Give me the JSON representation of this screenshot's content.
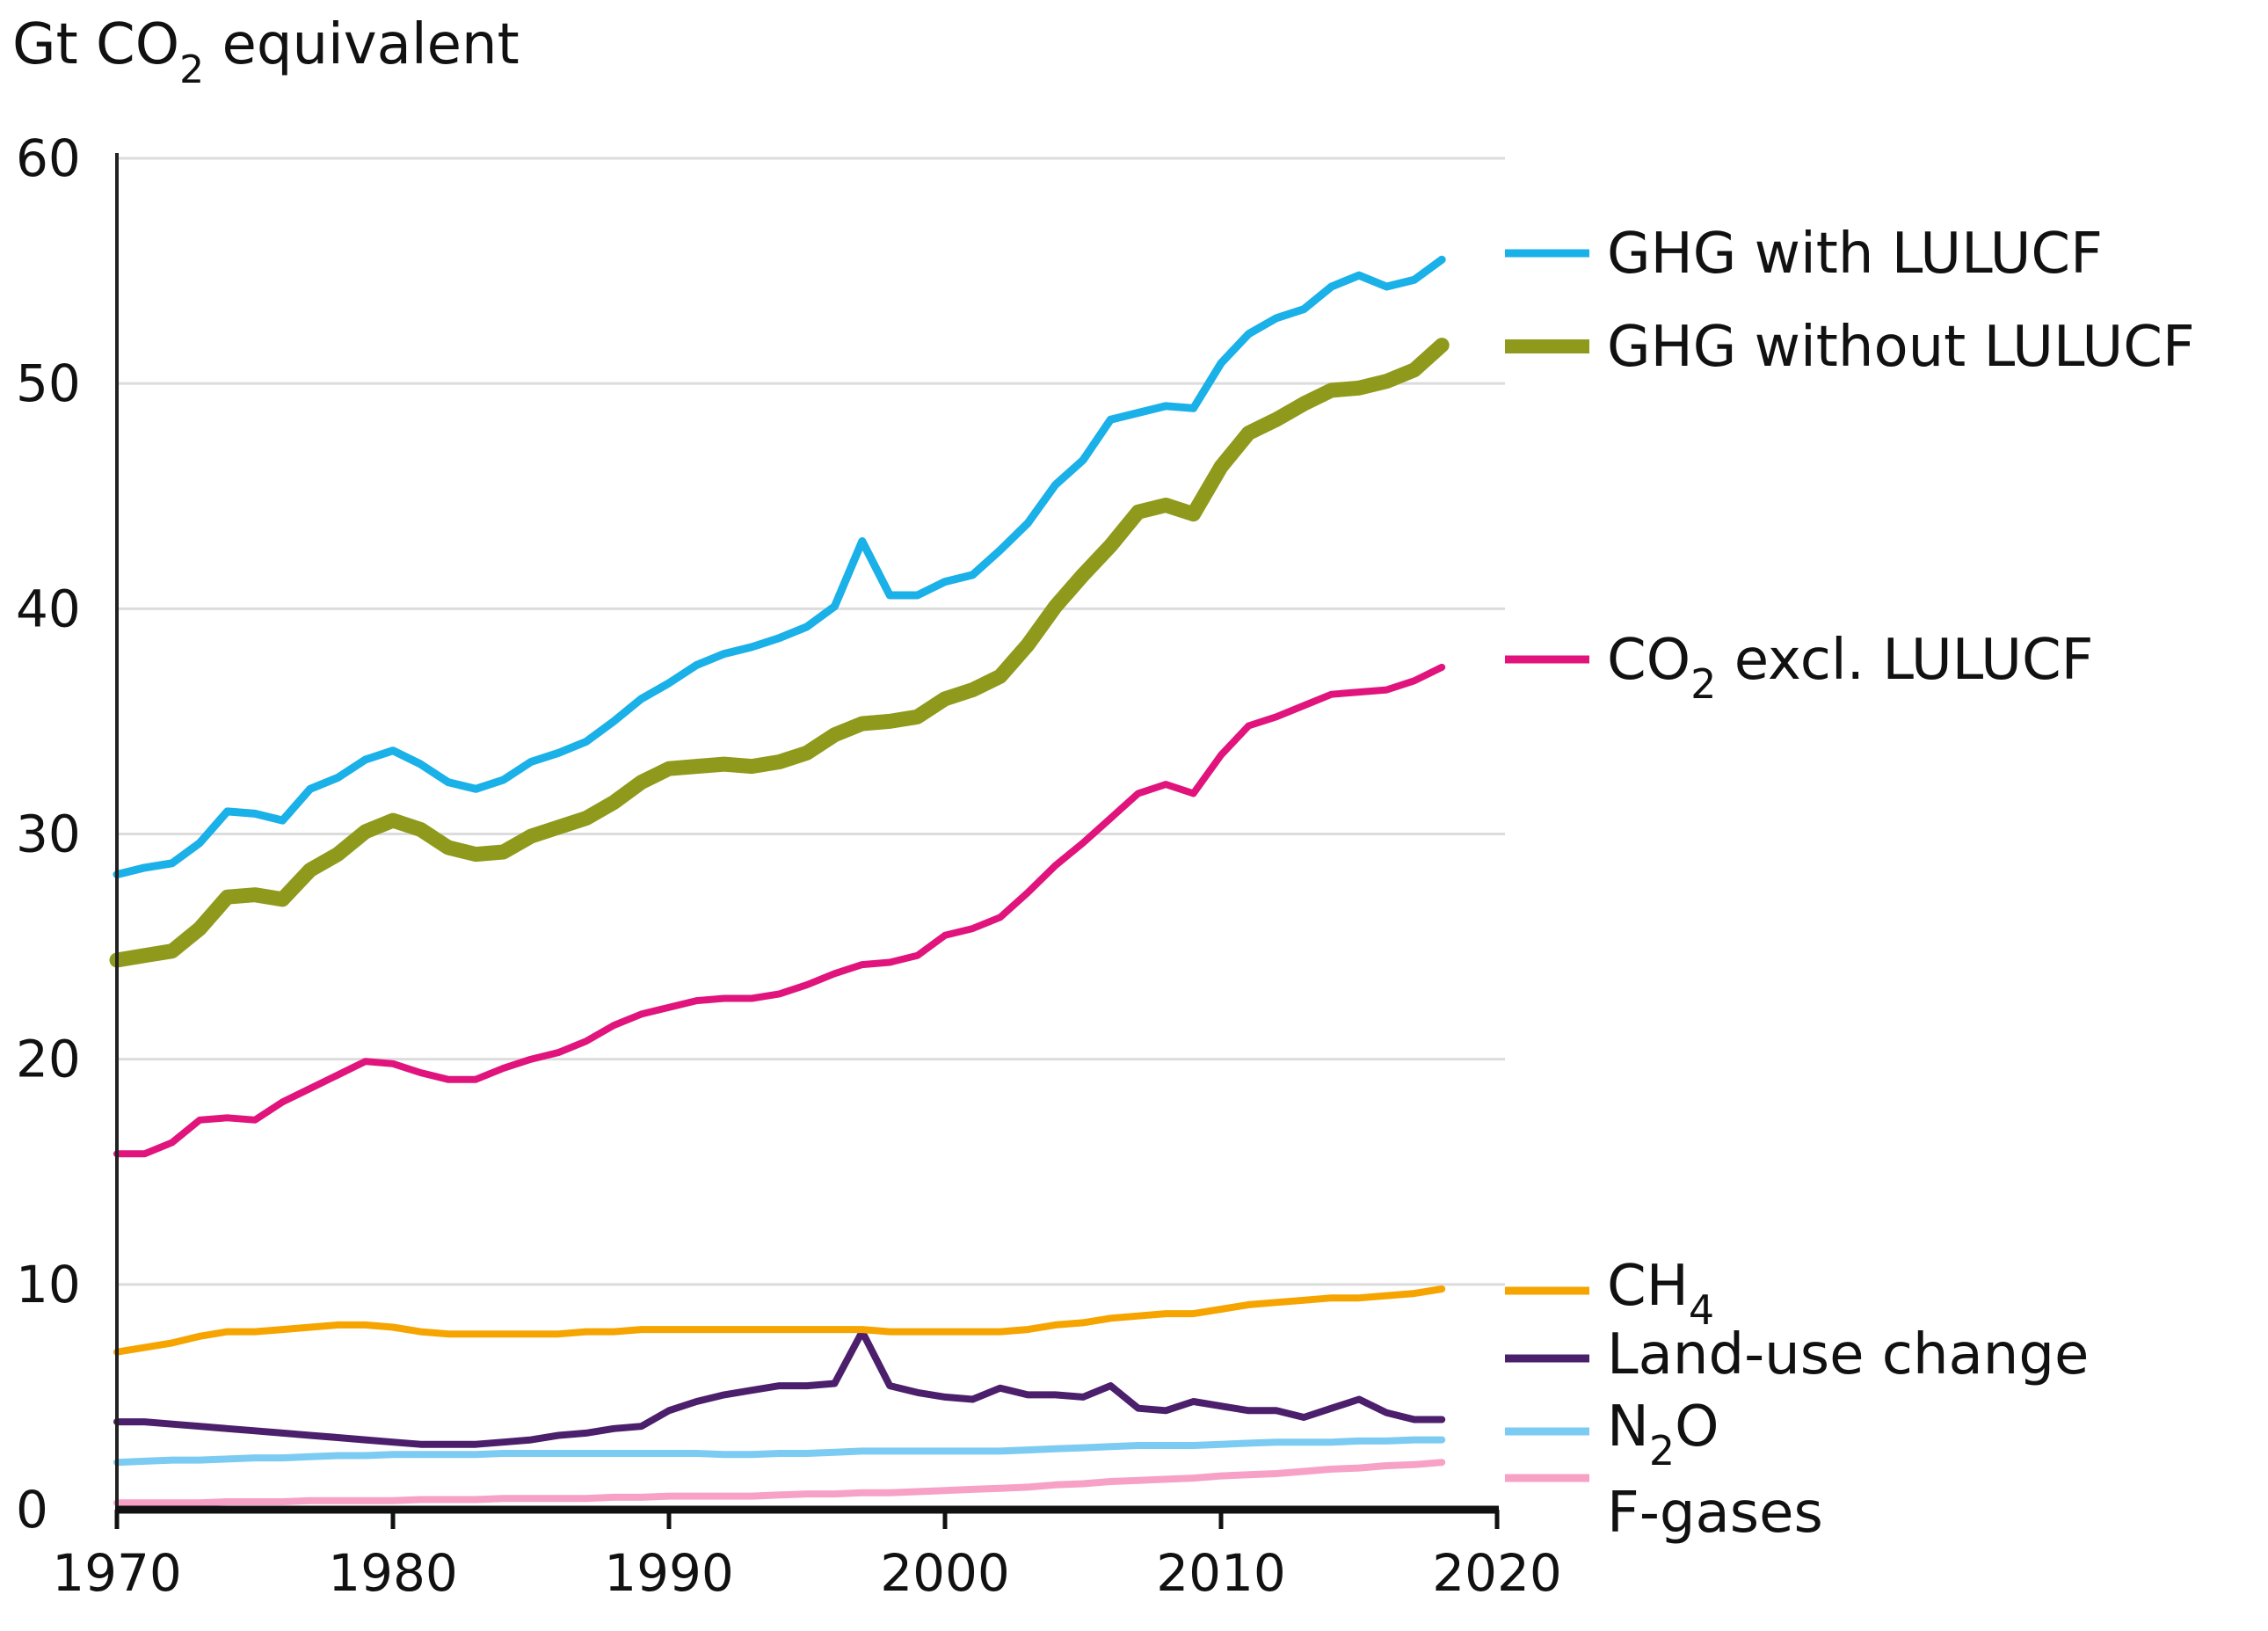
{
  "chart_data": {
    "type": "line",
    "ylabel": {
      "prefix": "Gt CO",
      "sub": "2",
      "suffix": " equivalent"
    },
    "xlim": [
      1970,
      2020
    ],
    "ylim": [
      0,
      60
    ],
    "xticks": [
      1970,
      1980,
      1990,
      2000,
      2010,
      2020
    ],
    "yticks": [
      0,
      10,
      20,
      30,
      40,
      50,
      60
    ],
    "grid": true,
    "legend_position": "right, at series ends",
    "x": [
      1970,
      1971,
      1972,
      1973,
      1974,
      1975,
      1976,
      1977,
      1978,
      1979,
      1980,
      1981,
      1982,
      1983,
      1984,
      1985,
      1986,
      1987,
      1988,
      1989,
      1990,
      1991,
      1992,
      1993,
      1994,
      1995,
      1996,
      1997,
      1998,
      1999,
      2000,
      2001,
      2002,
      2003,
      2004,
      2005,
      2006,
      2007,
      2008,
      2009,
      2010,
      2011,
      2012,
      2013,
      2014,
      2015,
      2016,
      2017,
      2018
    ],
    "series": [
      {
        "key": "ghg_with",
        "name": "GHG with LULUCF",
        "label": {
          "pre": "GHG with LULUCF",
          "sub": "",
          "post": ""
        },
        "color": "#1ab0e8",
        "width": 9,
        "values": [
          28.2,
          28.5,
          28.7,
          29.6,
          31.0,
          30.9,
          30.6,
          32.0,
          32.5,
          33.3,
          33.7,
          33.1,
          32.3,
          32.0,
          32.4,
          33.2,
          33.6,
          34.1,
          35.0,
          36.0,
          36.7,
          37.5,
          38.0,
          38.3,
          38.7,
          39.2,
          40.1,
          43.0,
          40.6,
          40.6,
          41.2,
          41.5,
          42.6,
          43.8,
          45.5,
          46.6,
          48.4,
          48.7,
          49.0,
          48.9,
          50.9,
          52.2,
          52.9,
          53.3,
          54.3,
          54.8,
          54.3,
          54.6,
          55.5
        ]
      },
      {
        "key": "ghg_without",
        "name": "GHG without LULUCF",
        "label": {
          "pre": "GHG without LULUCF",
          "sub": "",
          "post": ""
        },
        "color": "#8f9a1c",
        "width": 17,
        "values": [
          24.4,
          24.6,
          24.8,
          25.8,
          27.2,
          27.3,
          27.1,
          28.4,
          29.1,
          30.1,
          30.6,
          30.2,
          29.4,
          29.1,
          29.2,
          29.9,
          30.3,
          30.7,
          31.4,
          32.3,
          32.9,
          33.0,
          33.1,
          33.0,
          33.2,
          33.6,
          34.4,
          34.9,
          35.0,
          35.2,
          36.0,
          36.4,
          37.0,
          38.4,
          40.1,
          41.5,
          42.8,
          44.3,
          44.6,
          44.2,
          46.3,
          47.8,
          48.4,
          49.1,
          49.7,
          49.8,
          50.1,
          50.6,
          51.7
        ]
      },
      {
        "key": "co2",
        "name": "CO2 excl. LULUCF",
        "label": {
          "pre": "CO",
          "sub": "2",
          "post": " excl. LULUCF"
        },
        "color": "#e0147c",
        "width": 8,
        "values": [
          15.8,
          15.8,
          16.3,
          17.3,
          17.4,
          17.3,
          18.1,
          18.7,
          19.3,
          19.9,
          19.8,
          19.4,
          19.1,
          19.1,
          19.6,
          20.0,
          20.3,
          20.8,
          21.5,
          22.0,
          22.3,
          22.6,
          22.7,
          22.7,
          22.9,
          23.3,
          23.8,
          24.2,
          24.3,
          24.6,
          25.5,
          25.8,
          26.3,
          27.4,
          28.6,
          29.6,
          30.7,
          31.8,
          32.2,
          31.8,
          33.5,
          34.8,
          35.2,
          35.7,
          36.2,
          36.3,
          36.4,
          36.8,
          37.4
        ]
      },
      {
        "key": "ch4",
        "name": "CH4",
        "label": {
          "pre": "CH",
          "sub": "4",
          "post": ""
        },
        "color": "#f5a400",
        "width": 8,
        "values": [
          7.0,
          7.2,
          7.4,
          7.7,
          7.9,
          7.9,
          8.0,
          8.1,
          8.2,
          8.2,
          8.1,
          7.9,
          7.8,
          7.8,
          7.8,
          7.8,
          7.8,
          7.9,
          7.9,
          8.0,
          8.0,
          8.0,
          8.0,
          8.0,
          8.0,
          8.0,
          8.0,
          8.0,
          7.9,
          7.9,
          7.9,
          7.9,
          7.9,
          8.0,
          8.2,
          8.3,
          8.5,
          8.6,
          8.7,
          8.7,
          8.9,
          9.1,
          9.2,
          9.3,
          9.4,
          9.4,
          9.5,
          9.6,
          9.8
        ]
      },
      {
        "key": "luc",
        "name": "Land-use change",
        "label": {
          "pre": "Land-use change",
          "sub": "",
          "post": ""
        },
        "color": "#4b1f6b",
        "width": 8,
        "values": [
          3.9,
          3.9,
          3.8,
          3.7,
          3.6,
          3.5,
          3.4,
          3.3,
          3.2,
          3.1,
          3.0,
          2.9,
          2.9,
          2.9,
          3.0,
          3.1,
          3.3,
          3.4,
          3.6,
          3.7,
          4.4,
          4.8,
          5.1,
          5.3,
          5.5,
          5.5,
          5.6,
          7.9,
          5.5,
          5.2,
          5.0,
          4.9,
          5.4,
          5.1,
          5.1,
          5.0,
          5.5,
          4.5,
          4.4,
          4.8,
          4.6,
          4.4,
          4.4,
          4.1,
          4.5,
          4.9,
          4.3,
          4.0,
          4.0
        ]
      },
      {
        "key": "n2o",
        "name": "N2O",
        "label": {
          "pre": "N",
          "sub": "2",
          "post": "O"
        },
        "color": "#7ccbf2",
        "width": 8,
        "values": [
          2.1,
          2.15,
          2.2,
          2.2,
          2.25,
          2.3,
          2.3,
          2.35,
          2.4,
          2.4,
          2.45,
          2.45,
          2.45,
          2.45,
          2.5,
          2.5,
          2.5,
          2.5,
          2.5,
          2.5,
          2.5,
          2.5,
          2.45,
          2.45,
          2.5,
          2.5,
          2.55,
          2.6,
          2.6,
          2.6,
          2.6,
          2.6,
          2.6,
          2.65,
          2.7,
          2.75,
          2.8,
          2.85,
          2.85,
          2.85,
          2.9,
          2.95,
          3.0,
          3.0,
          3.0,
          3.05,
          3.05,
          3.1,
          3.1
        ]
      },
      {
        "key": "fgas",
        "name": "F-gases",
        "label": {
          "pre": "F-gases",
          "sub": "",
          "post": ""
        },
        "color": "#f7a1c6",
        "width": 8,
        "values": [
          0.3,
          0.3,
          0.3,
          0.3,
          0.35,
          0.35,
          0.35,
          0.4,
          0.4,
          0.4,
          0.4,
          0.45,
          0.45,
          0.45,
          0.5,
          0.5,
          0.5,
          0.5,
          0.55,
          0.55,
          0.6,
          0.6,
          0.6,
          0.6,
          0.65,
          0.7,
          0.7,
          0.75,
          0.75,
          0.8,
          0.85,
          0.9,
          0.95,
          1.0,
          1.1,
          1.15,
          1.25,
          1.3,
          1.35,
          1.4,
          1.5,
          1.55,
          1.6,
          1.7,
          1.8,
          1.85,
          1.95,
          2.0,
          2.1
        ]
      }
    ]
  }
}
